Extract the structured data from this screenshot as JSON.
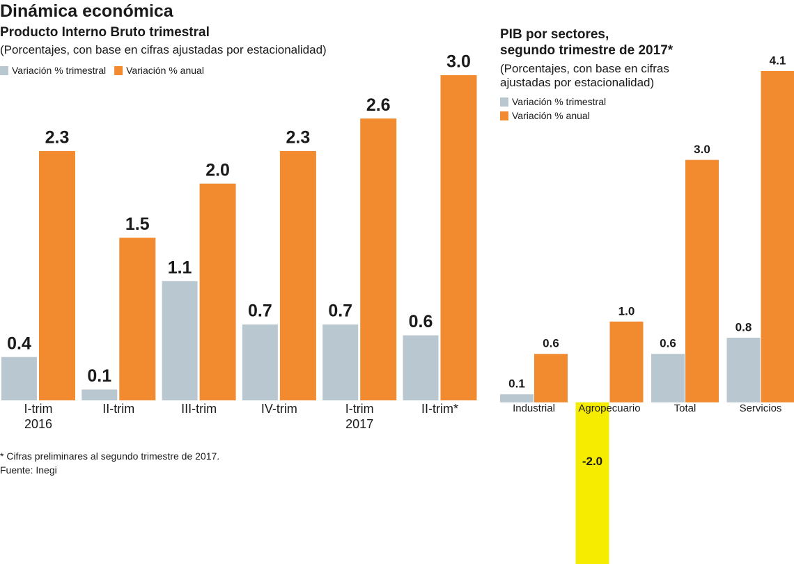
{
  "header": {
    "title": "Dinámica económica"
  },
  "chart_data": [
    {
      "type": "bar",
      "title": "Producto Interno Bruto trimestral",
      "subtitle": "(Porcentajes, con base en cifras ajustadas por estacionalidad)",
      "categories": [
        "I-trim\n2016",
        "II-trim",
        "III-trim",
        "IV-trim",
        "I-trim\n2017",
        "II-trim*"
      ],
      "series": [
        {
          "name": "Variación % trimestral",
          "color": "#b9c8d0",
          "values": [
            0.4,
            0.1,
            1.1,
            0.7,
            0.7,
            0.6
          ],
          "value_labels": [
            "0.4",
            "0.1",
            "1.1",
            "0.7",
            "0.7",
            "0.6"
          ]
        },
        {
          "name": "Variación % anual",
          "color": "#f28b30",
          "values": [
            2.3,
            1.5,
            2.0,
            2.3,
            2.6,
            3.0
          ],
          "value_labels": [
            "2.3",
            "1.5",
            "2.0",
            "2.3",
            "2.6",
            "3.0"
          ]
        }
      ],
      "ylim": [
        0,
        3.0
      ],
      "legend_layout": "horizontal"
    },
    {
      "type": "bar",
      "title": "PIB por sectores,\nsegundo trimestre de 2017*",
      "subtitle": "(Porcentajes, con base en cifras\najustadas por estacionalidad)",
      "categories": [
        "Industrial",
        "Agropecuario",
        "Total",
        "Servicios"
      ],
      "series": [
        {
          "name": "Variación % trimestral",
          "color": "#b9c8d0",
          "colors": [
            "#b9c8d0",
            "#f6ec00",
            "#b9c8d0",
            "#b9c8d0"
          ],
          "values": [
            0.1,
            -2.0,
            0.6,
            0.8
          ],
          "value_labels": [
            "0.1",
            "-2.0",
            "0.6",
            "0.8"
          ]
        },
        {
          "name": "Variación % anual",
          "color": "#f28b30",
          "values": [
            0.6,
            1.0,
            3.0,
            4.1
          ],
          "value_labels": [
            "0.6",
            "1.0",
            "3.0",
            "4.1"
          ]
        }
      ],
      "ylim": [
        -2.0,
        4.1
      ],
      "legend_layout": "vertical"
    }
  ],
  "footnotes": [
    "* Cifras preliminares al segundo trimestre de 2017.",
    "Fuente: Inegi"
  ]
}
